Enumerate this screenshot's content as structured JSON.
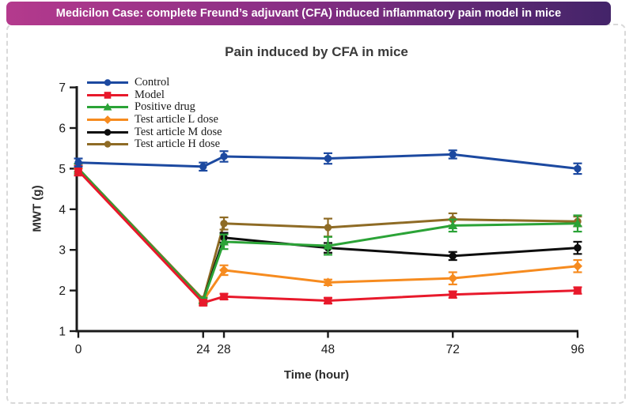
{
  "header": {
    "title": "Medicilon Case: complete Freund’s adjuvant (CFA) induced inflammatory pain model in mice"
  },
  "colors": {
    "banner_gradient_left": "#b43a8d",
    "banner_gradient_right": "#432469",
    "axis": "#1a1a1a",
    "title_text": "#3a3a3a"
  },
  "chart_data": {
    "type": "line",
    "title": "Pain induced by CFA in mice",
    "xlabel": "Time (hour)",
    "ylabel": "MWT (g)",
    "x": [
      0,
      24,
      28,
      48,
      72,
      96
    ],
    "xticks": [
      0,
      24,
      28,
      48,
      72,
      96
    ],
    "yticks": [
      1,
      2,
      3,
      4,
      5,
      6,
      7
    ],
    "xlim": [
      0,
      96
    ],
    "ylim": [
      1,
      7
    ],
    "grid": false,
    "error_bars": true,
    "legend_position": "top-left-inside",
    "series": [
      {
        "name": "Control",
        "color": "#1c49a0",
        "marker": "circle",
        "values": [
          5.15,
          5.05,
          5.3,
          5.25,
          5.35,
          5.0
        ],
        "errors": [
          0.1,
          0.1,
          0.13,
          0.13,
          0.1,
          0.13
        ]
      },
      {
        "name": "Model",
        "color": "#e8192b",
        "marker": "square",
        "values": [
          4.95,
          1.7,
          1.85,
          1.75,
          1.9,
          2.0
        ],
        "errors": [
          0.12,
          0.07,
          0.07,
          0.07,
          0.08,
          0.08
        ]
      },
      {
        "name": "Positive drug",
        "color": "#2ba337",
        "marker": "triangle",
        "values": [
          5.0,
          1.75,
          3.2,
          3.1,
          3.6,
          3.65
        ],
        "errors": [
          0.12,
          0.07,
          0.18,
          0.22,
          0.15,
          0.2
        ]
      },
      {
        "name": "Test article L dose",
        "color": "#f68b1f",
        "marker": "diamond",
        "values": [
          5.0,
          1.75,
          2.5,
          2.2,
          2.3,
          2.6
        ],
        "errors": [
          0.12,
          0.07,
          0.12,
          0.07,
          0.15,
          0.15
        ]
      },
      {
        "name": "Test article M dose",
        "color": "#0d0d0d",
        "marker": "circle",
        "values": [
          5.0,
          1.75,
          3.3,
          3.05,
          2.85,
          3.05
        ],
        "errors": [
          0.12,
          0.07,
          0.12,
          0.12,
          0.1,
          0.15
        ]
      },
      {
        "name": "Test article H dose",
        "color": "#8e6b25",
        "marker": "circle",
        "values": [
          5.0,
          1.78,
          3.65,
          3.55,
          3.75,
          3.7
        ],
        "errors": [
          0.12,
          0.07,
          0.15,
          0.22,
          0.15,
          0.12
        ]
      }
    ],
    "draw_order": [
      5,
      4,
      3,
      2,
      1,
      0
    ]
  }
}
